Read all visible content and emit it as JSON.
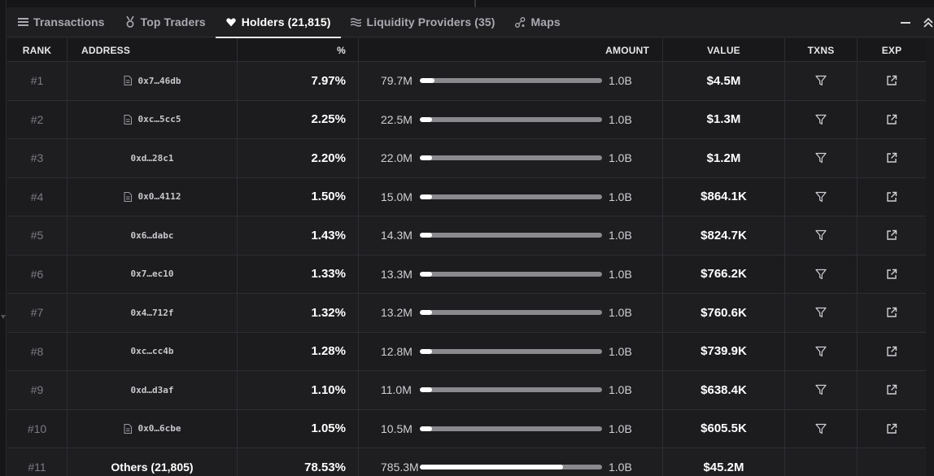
{
  "tabs": [
    {
      "label": "Transactions",
      "icon": "list-icon"
    },
    {
      "label": "Top Traders",
      "icon": "medal-icon"
    },
    {
      "label": "Holders (21,815)",
      "icon": "heart-icon",
      "active": true
    },
    {
      "label": "Liquidity Providers (35)",
      "icon": "waves-icon"
    },
    {
      "label": "Maps",
      "icon": "nodes-icon"
    }
  ],
  "columns": {
    "rank": "RANK",
    "address": "ADDRESS",
    "pct": "%",
    "amount": "AMOUNT",
    "value": "VALUE",
    "txns": "TXNS",
    "exp": "EXP"
  },
  "rows": [
    {
      "rank": "#1",
      "address": "0x7…46db",
      "contract": true,
      "pct": "7.97%",
      "amount": "79.7M",
      "total": "1.0B",
      "fill": 0.0797,
      "value": "$4.5M"
    },
    {
      "rank": "#2",
      "address": "0xc…5cc5",
      "contract": true,
      "pct": "2.25%",
      "amount": "22.5M",
      "total": "1.0B",
      "fill": 0.0225,
      "value": "$1.3M"
    },
    {
      "rank": "#3",
      "address": "0xd…28c1",
      "contract": false,
      "pct": "2.20%",
      "amount": "22.0M",
      "total": "1.0B",
      "fill": 0.022,
      "value": "$1.2M"
    },
    {
      "rank": "#4",
      "address": "0x0…4112",
      "contract": true,
      "pct": "1.50%",
      "amount": "15.0M",
      "total": "1.0B",
      "fill": 0.015,
      "value": "$864.1K"
    },
    {
      "rank": "#5",
      "address": "0x6…dabc",
      "contract": false,
      "pct": "1.43%",
      "amount": "14.3M",
      "total": "1.0B",
      "fill": 0.0143,
      "value": "$824.7K"
    },
    {
      "rank": "#6",
      "address": "0x7…ec10",
      "contract": false,
      "pct": "1.33%",
      "amount": "13.3M",
      "total": "1.0B",
      "fill": 0.0133,
      "value": "$766.2K"
    },
    {
      "rank": "#7",
      "address": "0x4…712f",
      "contract": false,
      "pct": "1.32%",
      "amount": "13.2M",
      "total": "1.0B",
      "fill": 0.0132,
      "value": "$760.6K"
    },
    {
      "rank": "#8",
      "address": "0xc…cc4b",
      "contract": false,
      "pct": "1.28%",
      "amount": "12.8M",
      "total": "1.0B",
      "fill": 0.0128,
      "value": "$739.9K"
    },
    {
      "rank": "#9",
      "address": "0xd…d3af",
      "contract": false,
      "pct": "1.10%",
      "amount": "11.0M",
      "total": "1.0B",
      "fill": 0.011,
      "value": "$638.4K"
    },
    {
      "rank": "#10",
      "address": "0x0…6cbe",
      "contract": true,
      "pct": "1.05%",
      "amount": "10.5M",
      "total": "1.0B",
      "fill": 0.0105,
      "value": "$605.5K"
    },
    {
      "rank": "#11",
      "address": "Others (21,805)",
      "contract": false,
      "others": true,
      "pct": "78.53%",
      "amount": "785.3M",
      "total": "1.0B",
      "fill": 0.7853,
      "value": "$45.2M"
    }
  ],
  "colors": {
    "background": "#1c1c1f",
    "bar_track": "#8a8a8e",
    "bar_fill": "#ffffff",
    "text": "#ffffff",
    "muted": "#7b7b82"
  }
}
